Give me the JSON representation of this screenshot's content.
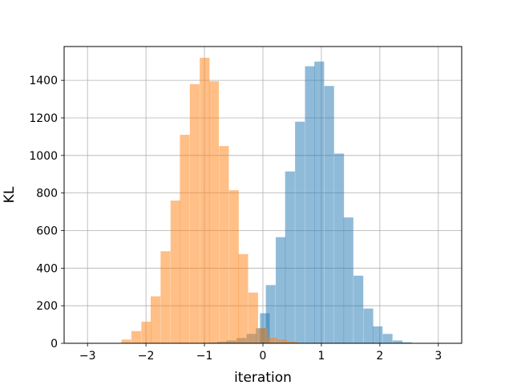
{
  "chart_data": {
    "type": "bar",
    "subtype": "overlapping-histogram",
    "xlabel": "iteration",
    "ylabel": "KL",
    "xlim": [
      -3.4,
      3.4
    ],
    "ylim": [
      0,
      1580
    ],
    "grid": true,
    "x_ticks": [
      -3,
      -2,
      -1,
      0,
      1,
      2,
      3
    ],
    "x_tick_labels": [
      "−3",
      "−2",
      "−1",
      "0",
      "1",
      "2",
      "3"
    ],
    "y_ticks": [
      0,
      200,
      400,
      600,
      800,
      1000,
      1200,
      1400
    ],
    "y_tick_labels": [
      "0",
      "200",
      "400",
      "600",
      "800",
      "1000",
      "1200",
      "1400"
    ],
    "series": [
      {
        "color": "#1f77b4",
        "alpha": 0.5,
        "bin_width": 0.1667,
        "bins": [
          {
            "x0": -0.95,
            "value": 3
          },
          {
            "x0": -0.78,
            "value": 8
          },
          {
            "x0": -0.62,
            "value": 15
          },
          {
            "x0": -0.45,
            "value": 28
          },
          {
            "x0": -0.28,
            "value": 50
          },
          {
            "x0": -0.12,
            "value": 80
          },
          {
            "x0": -0.05,
            "value": 160
          },
          {
            "x0": 0.05,
            "value": 310
          },
          {
            "x0": 0.22,
            "value": 565
          },
          {
            "x0": 0.38,
            "value": 915
          },
          {
            "x0": 0.55,
            "value": 1180
          },
          {
            "x0": 0.72,
            "value": 1475
          },
          {
            "x0": 0.88,
            "value": 1500
          },
          {
            "x0": 1.05,
            "value": 1370
          },
          {
            "x0": 1.22,
            "value": 1010
          },
          {
            "x0": 1.38,
            "value": 670
          },
          {
            "x0": 1.55,
            "value": 360
          },
          {
            "x0": 1.72,
            "value": 185
          },
          {
            "x0": 1.88,
            "value": 90
          },
          {
            "x0": 2.05,
            "value": 50
          },
          {
            "x0": 2.22,
            "value": 15
          },
          {
            "x0": 2.38,
            "value": 5
          }
        ]
      },
      {
        "color": "#ff7f0e",
        "alpha": 0.5,
        "bin_width": 0.1667,
        "bins": [
          {
            "x0": -2.42,
            "value": 20
          },
          {
            "x0": -2.25,
            "value": 65
          },
          {
            "x0": -2.08,
            "value": 115
          },
          {
            "x0": -1.92,
            "value": 250
          },
          {
            "x0": -1.75,
            "value": 490
          },
          {
            "x0": -1.58,
            "value": 760
          },
          {
            "x0": -1.42,
            "value": 1110
          },
          {
            "x0": -1.25,
            "value": 1380
          },
          {
            "x0": -1.08,
            "value": 1520
          },
          {
            "x0": -0.92,
            "value": 1395
          },
          {
            "x0": -0.75,
            "value": 1050
          },
          {
            "x0": -0.58,
            "value": 815
          },
          {
            "x0": -0.42,
            "value": 475
          },
          {
            "x0": -0.25,
            "value": 270
          },
          {
            "x0": -0.08,
            "value": 80
          },
          {
            "x0": 0.08,
            "value": 30
          },
          {
            "x0": 0.25,
            "value": 20
          },
          {
            "x0": 0.42,
            "value": 10
          }
        ]
      }
    ]
  }
}
